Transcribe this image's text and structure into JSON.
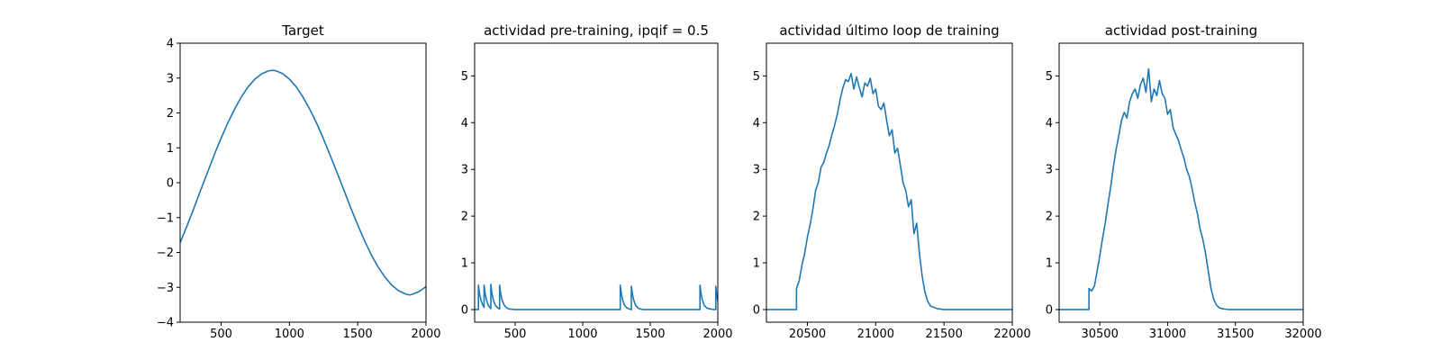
{
  "colors": {
    "line": "#1f77b4",
    "axes": "#000000",
    "background": "#ffffff"
  },
  "chart_data": [
    {
      "type": "line",
      "title": "Target",
      "xlabel": "",
      "ylabel": "",
      "xlim": [
        200,
        2000
      ],
      "ylim": [
        -4,
        4
      ],
      "xticks": [
        500,
        1000,
        1500,
        2000
      ],
      "yticks": [
        -4,
        -3,
        -2,
        -1,
        0,
        1,
        2,
        3,
        4
      ],
      "ytick_labels": [
        "−4",
        "−3",
        "−2",
        "−1",
        "0",
        "1",
        "2",
        "3",
        "4"
      ],
      "grid": false,
      "series": [
        {
          "x": [
            200,
            250,
            300,
            350,
            400,
            450,
            500,
            550,
            600,
            650,
            700,
            750,
            800,
            850,
            880,
            900,
            950,
            1000,
            1050,
            1100,
            1150,
            1200,
            1250,
            1300,
            1350,
            1400,
            1450,
            1500,
            1550,
            1600,
            1650,
            1700,
            1750,
            1800,
            1850,
            1880,
            1900,
            1950,
            2000
          ],
          "values": [
            -1.72,
            -1.24,
            -0.74,
            -0.22,
            0.29,
            0.8,
            1.28,
            1.72,
            2.12,
            2.47,
            2.76,
            2.98,
            3.13,
            3.21,
            3.22,
            3.21,
            3.13,
            2.97,
            2.75,
            2.45,
            2.1,
            1.7,
            1.25,
            0.77,
            0.28,
            -0.22,
            -0.73,
            -1.21,
            -1.66,
            -2.07,
            -2.42,
            -2.71,
            -2.94,
            -3.1,
            -3.19,
            -3.22,
            -3.2,
            -3.12,
            -2.98
          ]
        }
      ]
    },
    {
      "type": "line",
      "title": "actividad pre-training, ipqif = 0.5",
      "xlabel": "",
      "ylabel": "",
      "xlim": [
        200,
        2000
      ],
      "ylim": [
        -0.27,
        5.7
      ],
      "xticks": [
        500,
        1000,
        1500,
        2000
      ],
      "yticks": [
        0,
        1,
        2,
        3,
        4,
        5
      ],
      "grid": false,
      "series": [
        {
          "x": [
            200,
            228,
            228,
            236,
            246,
            258,
            270,
            270,
            278,
            288,
            300,
            310,
            320,
            320,
            328,
            338,
            350,
            362,
            375,
            385,
            385,
            393,
            403,
            420,
            440,
            460,
            500,
            600,
            800,
            1000,
            1200,
            1278,
            1278,
            1286,
            1296,
            1310,
            1330,
            1350,
            1360,
            1360,
            1368,
            1378,
            1392,
            1410,
            1430,
            1450,
            1500,
            1600,
            1700,
            1800,
            1868,
            1868,
            1876,
            1886,
            1900,
            1920,
            1950,
            1970,
            1985,
            1985,
            1990,
            1995,
            2000
          ],
          "values": [
            0,
            0,
            0.52,
            0.34,
            0.21,
            0.11,
            0.05,
            0.52,
            0.34,
            0.2,
            0.1,
            0.05,
            0.02,
            0.54,
            0.35,
            0.21,
            0.11,
            0.06,
            0.03,
            0.01,
            0.52,
            0.34,
            0.2,
            0.09,
            0.03,
            0.01,
            0,
            0,
            0,
            0,
            0,
            0,
            0.52,
            0.34,
            0.2,
            0.09,
            0.03,
            0.01,
            0,
            0.5,
            0.33,
            0.2,
            0.09,
            0.03,
            0.01,
            0,
            0,
            0,
            0,
            0,
            0,
            0.52,
            0.34,
            0.2,
            0.09,
            0.03,
            0.01,
            0,
            0,
            0.5,
            0.36,
            0.26,
            0.18
          ]
        }
      ]
    },
    {
      "type": "line",
      "title": "actividad último loop de training",
      "xlabel": "",
      "ylabel": "",
      "xlim": [
        20200,
        22000
      ],
      "ylim": [
        -0.27,
        5.7
      ],
      "xticks": [
        20500,
        21000,
        21500,
        22000
      ],
      "yticks": [
        0,
        1,
        2,
        3,
        4,
        5
      ],
      "grid": false,
      "series": [
        {
          "x": [
            20200,
            20300,
            20420,
            20420,
            20440,
            20460,
            20480,
            20500,
            20520,
            20540,
            20560,
            20580,
            20600,
            20620,
            20640,
            20660,
            20680,
            20700,
            20720,
            20740,
            20760,
            20780,
            20800,
            20820,
            20840,
            20860,
            20880,
            20900,
            20920,
            20940,
            20960,
            20980,
            21000,
            21020,
            21040,
            21060,
            21080,
            21100,
            21120,
            21140,
            21160,
            21180,
            21200,
            21220,
            21240,
            21260,
            21280,
            21300,
            21320,
            21340,
            21360,
            21380,
            21400,
            21450,
            21500,
            21600,
            21800,
            22000
          ],
          "values": [
            0,
            0,
            0,
            0.45,
            0.62,
            0.95,
            1.2,
            1.55,
            1.82,
            2.15,
            2.55,
            2.72,
            3.05,
            3.15,
            3.35,
            3.52,
            3.75,
            3.95,
            4.2,
            4.5,
            4.75,
            4.92,
            4.88,
            5.05,
            4.72,
            4.98,
            4.75,
            4.55,
            4.85,
            4.78,
            4.95,
            4.62,
            4.72,
            4.35,
            4.28,
            4.42,
            4.05,
            3.72,
            3.85,
            3.35,
            3.45,
            3.1,
            2.72,
            2.55,
            2.2,
            2.35,
            1.62,
            1.85,
            1.2,
            0.72,
            0.38,
            0.18,
            0.08,
            0.02,
            0,
            0,
            0,
            0
          ]
        }
      ]
    },
    {
      "type": "line",
      "title": "actividad post-training",
      "xlabel": "",
      "ylabel": "",
      "xlim": [
        30200,
        32000
      ],
      "ylim": [
        -0.27,
        5.7
      ],
      "xticks": [
        30500,
        31000,
        31500,
        32000
      ],
      "yticks": [
        0,
        1,
        2,
        3,
        4,
        5
      ],
      "grid": false,
      "series": [
        {
          "x": [
            30200,
            30300,
            30420,
            30420,
            30440,
            30460,
            30480,
            30500,
            30520,
            30540,
            30560,
            30580,
            30600,
            30620,
            30640,
            30660,
            30680,
            30700,
            30720,
            30740,
            30760,
            30780,
            30800,
            30820,
            30840,
            30860,
            30880,
            30900,
            30920,
            30940,
            30960,
            30980,
            31000,
            31020,
            31040,
            31060,
            31080,
            31100,
            31120,
            31140,
            31160,
            31180,
            31200,
            31220,
            31240,
            31260,
            31280,
            31300,
            31320,
            31340,
            31360,
            31380,
            31400,
            31450,
            31500,
            31600,
            31800,
            32000
          ],
          "values": [
            0,
            0,
            0,
            0.45,
            0.4,
            0.5,
            0.82,
            1.15,
            1.52,
            1.85,
            2.25,
            2.62,
            3.05,
            3.42,
            3.72,
            4.05,
            4.22,
            4.1,
            4.45,
            4.62,
            4.72,
            4.52,
            4.82,
            4.95,
            4.65,
            5.15,
            4.45,
            4.72,
            4.58,
            4.9,
            4.62,
            4.52,
            4.18,
            4.28,
            3.9,
            3.75,
            3.62,
            3.42,
            3.25,
            3.0,
            2.85,
            2.6,
            2.3,
            2.05,
            1.72,
            1.5,
            1.2,
            0.82,
            0.45,
            0.22,
            0.1,
            0.04,
            0.02,
            0,
            0,
            0,
            0,
            0
          ]
        }
      ]
    }
  ]
}
